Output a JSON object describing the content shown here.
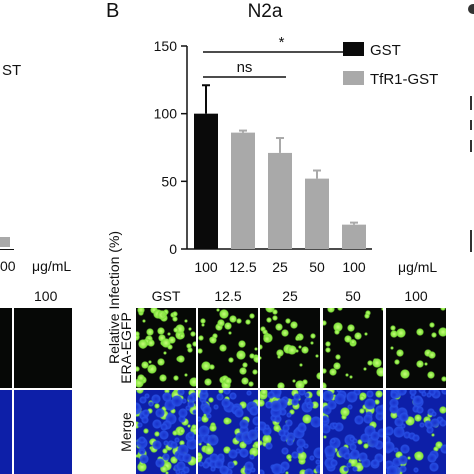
{
  "panel_letter": "B",
  "left_partial": {
    "legend_text": "ST",
    "x_tick": "00",
    "unit": "μg/mL",
    "col_label": "100"
  },
  "colors": {
    "gst": "#0a0a0a",
    "tfr1": "#a9a9a9",
    "green_signal": "#7ee03a",
    "nuclei_blue": "#1830c8",
    "background_blue": "#0d1fa8"
  },
  "chart_data": {
    "type": "bar",
    "title": "N2a",
    "ylabel": "Relative Infection (%)",
    "xlabel": "",
    "categories": [
      "100",
      "12.5",
      "25",
      "50",
      "100"
    ],
    "unit_label": "μg/mL",
    "values": [
      100,
      86,
      71,
      52,
      18
    ],
    "errors": [
      21,
      1.5,
      11,
      6,
      1.5
    ],
    "groups": [
      "GST",
      "TfR1-GST",
      "TfR1-GST",
      "TfR1-GST",
      "TfR1-GST"
    ],
    "series": [
      {
        "name": "GST",
        "color": "#0a0a0a"
      },
      {
        "name": "TfR1-GST",
        "color": "#a9a9a9"
      }
    ],
    "ylim": [
      0,
      150
    ],
    "yticks": [
      0,
      50,
      100,
      150
    ],
    "legend_position": "top-right",
    "grid": false,
    "annotations": [
      {
        "text": "*",
        "from_index": 0,
        "to_index": 4
      },
      {
        "text": "ns",
        "from_index": 0,
        "to_index": 2
      }
    ]
  },
  "micrographs": {
    "columns": [
      "GST",
      "12.5",
      "25",
      "50",
      "100"
    ],
    "rows": [
      "ERA-EGFP",
      "Merge"
    ],
    "green_density": [
      0.9,
      0.55,
      0.5,
      0.35,
      0.15
    ]
  }
}
